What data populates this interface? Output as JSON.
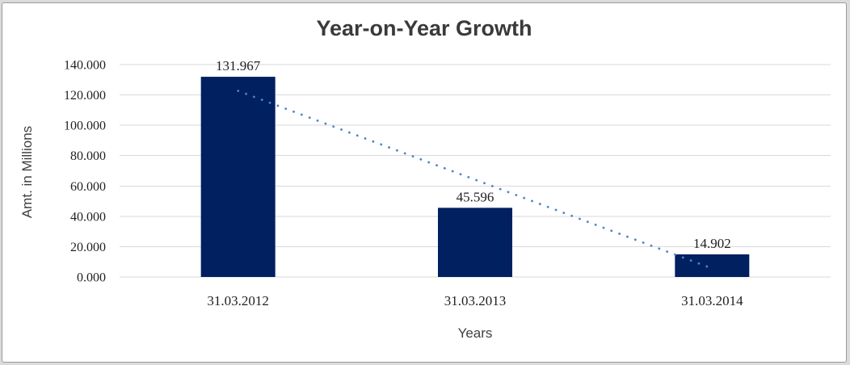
{
  "window": {
    "outer_background": "#DBDBDB",
    "frame_background": "#FFFFFF",
    "frame_border_color": "#9B9B9B"
  },
  "chart_data": {
    "type": "bar",
    "title": "Year-on-Year Growth",
    "xlabel": "Years",
    "ylabel": "Amt. in Millions",
    "categories": [
      "31.03.2012",
      "31.03.2013",
      "31.03.2014"
    ],
    "values": [
      131.967,
      45.596,
      14.902
    ],
    "data_labels": [
      "131.967",
      "45.596",
      "14.902"
    ],
    "y_ticks": [
      0,
      20,
      40,
      60,
      80,
      100,
      120,
      140
    ],
    "y_tick_labels": [
      "0.000",
      "20.000",
      "40.000",
      "60.000",
      "80.000",
      "100.000",
      "120.000",
      "140.000"
    ],
    "ylim": [
      0,
      140
    ],
    "grid": true,
    "legend": "none",
    "bar_color": "#002060",
    "gridline_color": "#D9D9D9",
    "trendline": {
      "type": "linear",
      "style": "dotted",
      "color": "#4A86C8"
    },
    "title_color": "#3A3A3A",
    "axis_title_color": "#404040",
    "tick_label_color": "#1F1F1F"
  }
}
